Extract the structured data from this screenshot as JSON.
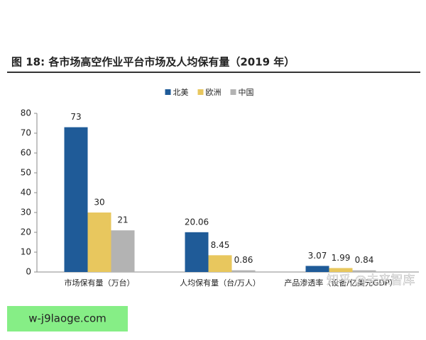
{
  "chart_data": {
    "type": "bar",
    "title": "图 18: 各市场高空作业平台市场及人均保有量（2019 年）",
    "categories": [
      "市场保有量（万台）",
      "人均保有量（台/万人）",
      "产品渗透率（设备/亿美元GDP）"
    ],
    "series": [
      {
        "name": "北美",
        "color": "#1f5b98",
        "values": [
          73,
          20.06,
          3.07
        ]
      },
      {
        "name": "欧洲",
        "color": "#e8c75e",
        "values": [
          30,
          8.45,
          1.99
        ]
      },
      {
        "name": "中国",
        "color": "#b3b3b3",
        "values": [
          21,
          0.86,
          0.84
        ]
      }
    ],
    "ylim": [
      0,
      80
    ],
    "yticks": [
      0,
      10,
      20,
      30,
      40,
      50,
      60,
      70,
      80
    ],
    "grid": false,
    "legend": "top"
  },
  "watermark": "知乎 @未来智库",
  "banner": "w-j9laoge.com"
}
